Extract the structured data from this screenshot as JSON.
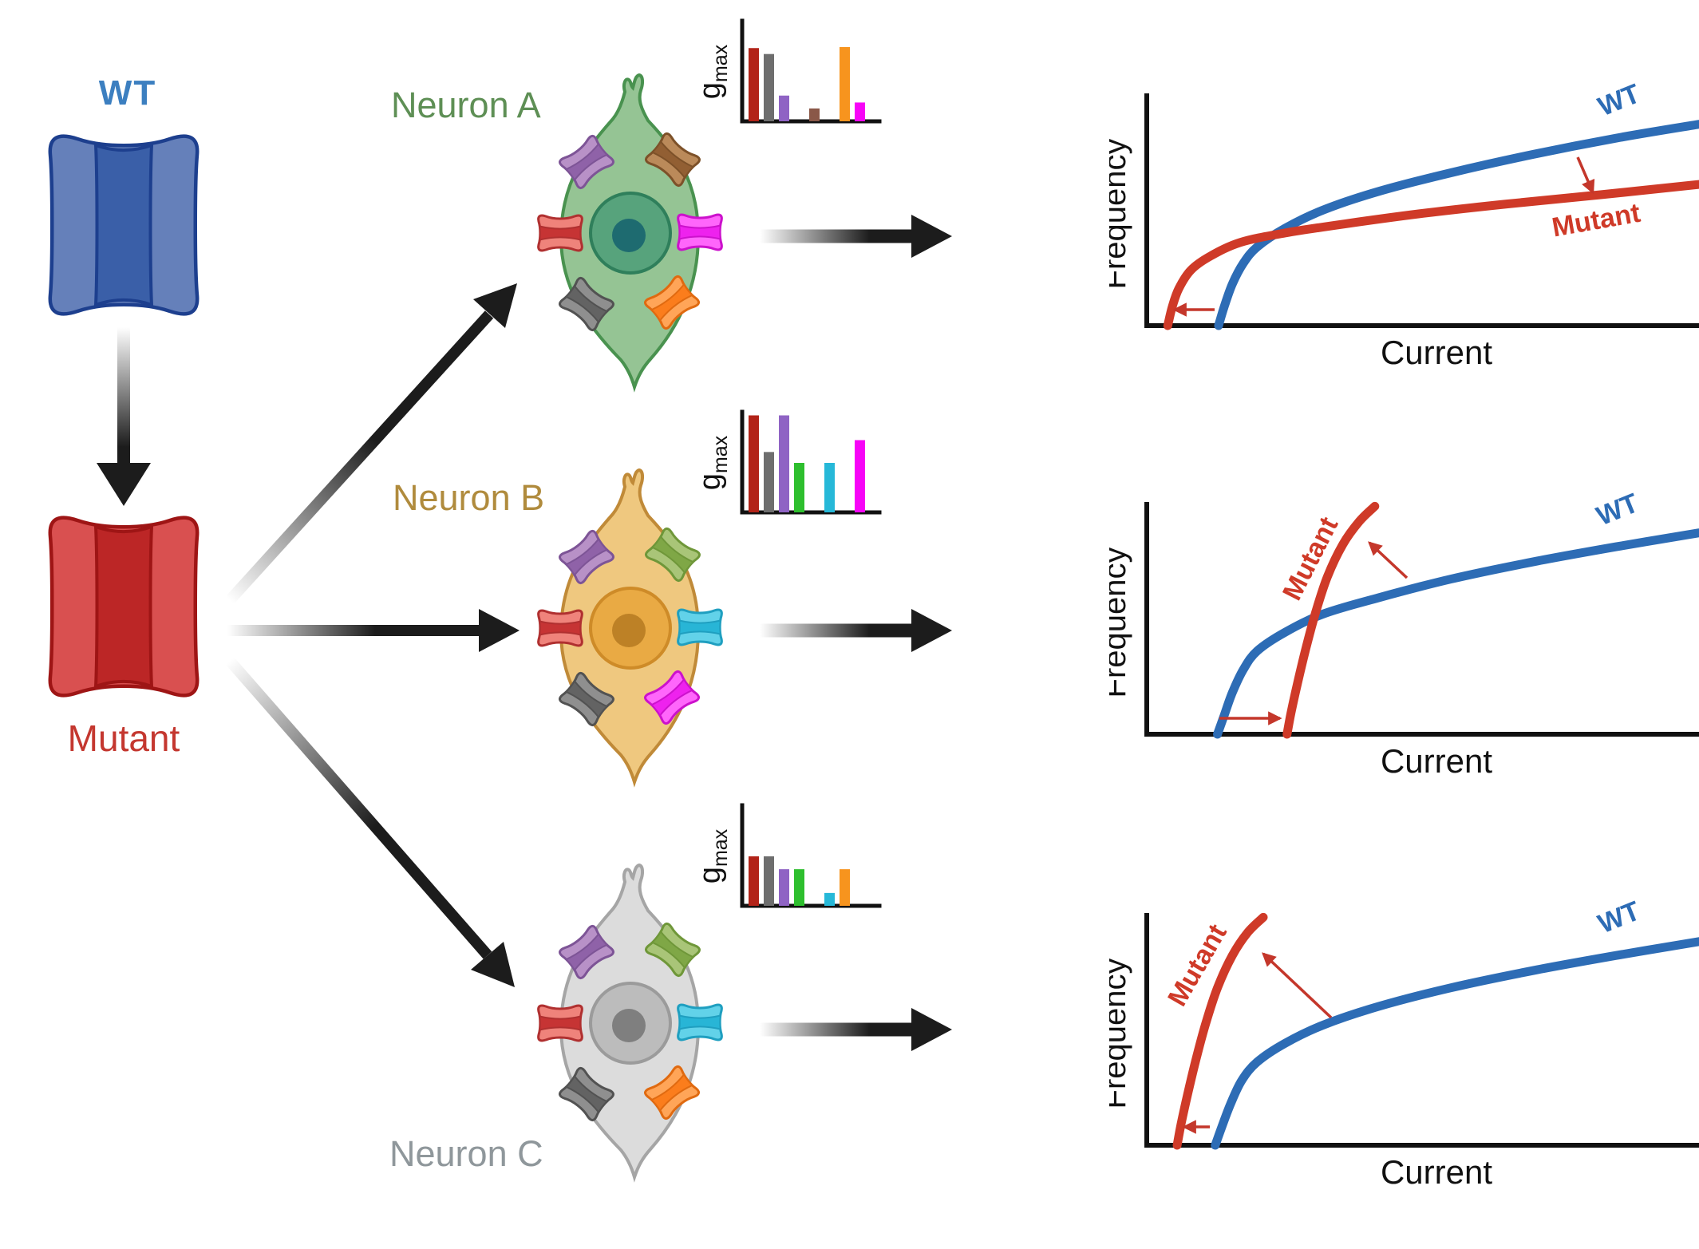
{
  "figure": {
    "background": "#ffffff",
    "description": "Ion channel mutation (WT to Mutant) has neuron-type-specific effects on firing: three neurons with different maximal conductance (gmax) profiles show different frequency-current curve changes"
  },
  "left_panel": {
    "wt_label": "WT",
    "wt_label_color": "#3c7fc0",
    "mutant_label": "Mutant",
    "mutant_label_color": "#c4372f",
    "wt_channel": {
      "side": "#6580ba",
      "center": "#3a5fa8",
      "stroke": "#1d3f8e"
    },
    "mutant_channel": {
      "side": "#d95050",
      "center": "#bc2626",
      "stroke": "#9e1515"
    }
  },
  "receptor_palette": {
    "red": {
      "light": "#ef837b",
      "dark": "#c63434",
      "stroke": "#b03030"
    },
    "gray": {
      "light": "#8f8f8f",
      "dark": "#636363",
      "stroke": "#525252"
    },
    "purple": {
      "light": "#b891c7",
      "dark": "#8f62a8",
      "stroke": "#7d5496"
    },
    "green": {
      "light": "#a9c578",
      "dark": "#7fa746",
      "stroke": "#6f9739"
    },
    "brown": {
      "light": "#bb8a5a",
      "dark": "#925f33",
      "stroke": "#7d5129"
    },
    "cyan": {
      "light": "#62d2e9",
      "dark": "#28b5d6",
      "stroke": "#1f9fc0"
    },
    "orange": {
      "light": "#ffa558",
      "dark": "#fb7d1c",
      "stroke": "#e06a10"
    },
    "magenta": {
      "light": "#ff66fb",
      "dark": "#ee22ee",
      "stroke": "#cc11cc"
    }
  },
  "bar_palette": {
    "red": "#b22318",
    "gray": "#6e6e6e",
    "purple": "#8f63c4",
    "green": "#2ebf2e",
    "brown": "#8a5848",
    "cyan": "#26b8d8",
    "orange": "#f7941e",
    "magenta": "#f704f7"
  },
  "neurons": [
    {
      "id": "A",
      "label": "Neuron A",
      "label_color": "#5e8f55",
      "body": "#95c494",
      "body_stroke": "#49924f",
      "nucleus": "#57a37c",
      "nucleus_stroke": "#2f7f5b",
      "nucleolus": "#1e6b70",
      "receptors": {
        "top_left": "purple",
        "top_right": "brown",
        "left": "red",
        "right": "magenta",
        "bottom_left": "gray",
        "bottom_right": "orange"
      }
    },
    {
      "id": "B",
      "label": "Neuron B",
      "label_color": "#b08b3d",
      "body": "#efc87f",
      "body_stroke": "#c08a38",
      "nucleus": "#e9aa44",
      "nucleus_stroke": "#ce8b28",
      "nucleolus": "#bd8126",
      "receptors": {
        "top_left": "purple",
        "top_right": "green",
        "left": "red",
        "right": "cyan",
        "bottom_left": "gray",
        "bottom_right": "magenta"
      }
    },
    {
      "id": "C",
      "label": "Neuron C",
      "label_color": "#8f979b",
      "body": "#dcdcdc",
      "body_stroke": "#a5a5a5",
      "nucleus": "#bcbcbc",
      "nucleus_stroke": "#9b9b9b",
      "nucleolus": "#7f7f7f",
      "receptors": {
        "top_left": "purple",
        "top_right": "green",
        "left": "red",
        "right": "cyan",
        "bottom_left": "gray",
        "bottom_right": "orange"
      }
    }
  ],
  "charts": {
    "gmax_main": "g",
    "gmax_sub": "max",
    "axis_color": "#111111",
    "slot_order": [
      "red",
      "gray",
      "purple",
      "green",
      "brown",
      "cyan",
      "orange",
      "magenta"
    ]
  },
  "chart_data": [
    {
      "id": "gmax-neuron-a",
      "type": "bar",
      "ylabel": "gmax",
      "xlabel": "",
      "categories": [
        "red",
        "gray",
        "purple",
        "green",
        "brown",
        "cyan",
        "orange",
        "magenta"
      ],
      "values": [
        0.74,
        0.68,
        0.26,
        0,
        0.13,
        0,
        0.75,
        0.19
      ],
      "ylim": [
        0,
        1
      ],
      "grid": false,
      "note": "qualitative conductance profile, no tick labels"
    },
    {
      "id": "gmax-neuron-b",
      "type": "bar",
      "ylabel": "gmax",
      "xlabel": "",
      "categories": [
        "red",
        "gray",
        "purple",
        "green",
        "brown",
        "cyan",
        "orange",
        "magenta"
      ],
      "values": [
        0.98,
        0.61,
        0.98,
        0.5,
        0,
        0.5,
        0,
        0.73
      ],
      "ylim": [
        0,
        1
      ],
      "grid": false,
      "note": "qualitative conductance profile, no tick labels"
    },
    {
      "id": "gmax-neuron-c",
      "type": "bar",
      "ylabel": "gmax",
      "xlabel": "",
      "categories": [
        "red",
        "gray",
        "purple",
        "green",
        "brown",
        "cyan",
        "orange",
        "magenta"
      ],
      "values": [
        0.5,
        0.5,
        0.37,
        0.37,
        0,
        0.13,
        0.37,
        0
      ],
      "ylim": [
        0,
        1
      ],
      "grid": false,
      "note": "qualitative conductance profile, no tick labels"
    },
    {
      "id": "fi-neuron-a",
      "type": "line",
      "xlabel": "Current",
      "ylabel": "Frequency",
      "xlim": [
        0,
        1
      ],
      "ylim": [
        0,
        1
      ],
      "grid": false,
      "legend_position": "on-curve",
      "annotation_color": "#c4372b",
      "annotations": {
        "rheobase_shift": "left",
        "gain_change": "decreased"
      },
      "series": [
        {
          "name": "WT",
          "color": "#2d6cb5",
          "points": [
            [
              0.13,
              0
            ],
            [
              0.14,
              0.08
            ],
            [
              0.155,
              0.18
            ],
            [
              0.175,
              0.27
            ],
            [
              0.2,
              0.34
            ],
            [
              0.25,
              0.42
            ],
            [
              0.32,
              0.5
            ],
            [
              0.42,
              0.58
            ],
            [
              0.55,
              0.66
            ],
            [
              0.7,
              0.74
            ],
            [
              0.85,
              0.81
            ],
            [
              1.0,
              0.87
            ]
          ]
        },
        {
          "name": "Mutant",
          "color": "#cf3a28",
          "points": [
            [
              0.038,
              0
            ],
            [
              0.046,
              0.08
            ],
            [
              0.058,
              0.16
            ],
            [
              0.08,
              0.24
            ],
            [
              0.115,
              0.3
            ],
            [
              0.17,
              0.36
            ],
            [
              0.25,
              0.4
            ],
            [
              0.36,
              0.44
            ],
            [
              0.5,
              0.485
            ],
            [
              0.65,
              0.525
            ],
            [
              0.82,
              0.565
            ],
            [
              1.0,
              0.61
            ]
          ]
        }
      ]
    },
    {
      "id": "fi-neuron-b",
      "type": "line",
      "xlabel": "Current",
      "ylabel": "Frequency",
      "xlim": [
        0,
        1
      ],
      "ylim": [
        0,
        1
      ],
      "grid": false,
      "legend_position": "on-curve",
      "annotation_color": "#c4372b",
      "annotations": {
        "rheobase_shift": "right",
        "gain_change": "increased"
      },
      "series": [
        {
          "name": "WT",
          "color": "#2d6cb5",
          "points": [
            [
              0.128,
              0
            ],
            [
              0.14,
              0.08
            ],
            [
              0.155,
              0.18
            ],
            [
              0.175,
              0.28
            ],
            [
              0.2,
              0.36
            ],
            [
              0.25,
              0.44
            ],
            [
              0.32,
              0.52
            ],
            [
              0.42,
              0.59
            ],
            [
              0.55,
              0.67
            ],
            [
              0.7,
              0.745
            ],
            [
              0.85,
              0.81
            ],
            [
              1.0,
              0.87
            ]
          ]
        },
        {
          "name": "Mutant",
          "color": "#cf3a28",
          "points": [
            [
              0.254,
              0
            ],
            [
              0.261,
              0.09
            ],
            [
              0.272,
              0.21
            ],
            [
              0.287,
              0.36
            ],
            [
              0.305,
              0.52
            ],
            [
              0.327,
              0.68
            ],
            [
              0.355,
              0.82
            ],
            [
              0.385,
              0.92
            ],
            [
              0.413,
              0.985
            ]
          ]
        }
      ]
    },
    {
      "id": "fi-neuron-c",
      "type": "line",
      "xlabel": "Current",
      "ylabel": "Frequency",
      "xlim": [
        0,
        1
      ],
      "ylim": [
        0,
        1
      ],
      "grid": false,
      "legend_position": "on-curve",
      "annotation_color": "#c4372b",
      "annotations": {
        "rheobase_shift": "left",
        "gain_change": "increased"
      },
      "series": [
        {
          "name": "WT",
          "color": "#2d6cb5",
          "points": [
            [
              0.124,
              0
            ],
            [
              0.136,
              0.08
            ],
            [
              0.152,
              0.18
            ],
            [
              0.172,
              0.28
            ],
            [
              0.2,
              0.36
            ],
            [
              0.25,
              0.44
            ],
            [
              0.32,
              0.52
            ],
            [
              0.42,
              0.6
            ],
            [
              0.55,
              0.68
            ],
            [
              0.7,
              0.755
            ],
            [
              0.85,
              0.82
            ],
            [
              1.0,
              0.88
            ]
          ]
        },
        {
          "name": "Mutant",
          "color": "#cf3a28",
          "points": [
            [
              0.055,
              0
            ],
            [
              0.062,
              0.09
            ],
            [
              0.073,
              0.21
            ],
            [
              0.088,
              0.36
            ],
            [
              0.106,
              0.52
            ],
            [
              0.128,
              0.68
            ],
            [
              0.155,
              0.82
            ],
            [
              0.183,
              0.92
            ],
            [
              0.211,
              0.985
            ]
          ]
        }
      ]
    }
  ]
}
